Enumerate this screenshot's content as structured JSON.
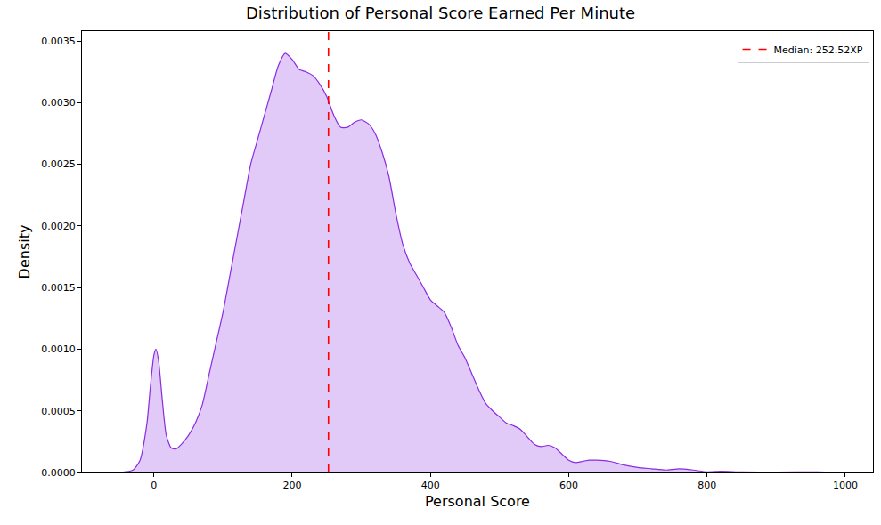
{
  "chart_data": {
    "type": "area",
    "title": "Distribution of Personal Score Earned Per Minute",
    "x_label": "Personal Score",
    "y_label": "Density",
    "color": "#8a2be2",
    "x": [
      -50,
      -30,
      -20,
      -10,
      -5,
      0,
      3,
      7,
      12,
      18,
      25,
      32,
      40,
      50,
      60,
      70,
      80,
      90,
      100,
      110,
      120,
      130,
      140,
      150,
      160,
      170,
      180,
      190,
      200,
      210,
      220,
      230,
      240,
      250,
      260,
      270,
      280,
      290,
      300,
      310,
      320,
      330,
      340,
      350,
      360,
      370,
      380,
      390,
      400,
      410,
      420,
      430,
      440,
      450,
      460,
      470,
      480,
      490,
      500,
      510,
      520,
      530,
      540,
      550,
      560,
      570,
      580,
      590,
      600,
      610,
      620,
      630,
      640,
      660,
      680,
      700,
      720,
      740,
      760,
      780,
      800,
      820,
      850,
      900,
      960,
      990
    ],
    "values": [
      0,
      2e-05,
      0.0001,
      0.0004,
      0.0007,
      0.00095,
      0.001,
      0.0009,
      0.0006,
      0.0003,
      0.0002,
      0.00019,
      0.00023,
      0.0003,
      0.0004,
      0.00055,
      0.0008,
      0.00105,
      0.0013,
      0.0016,
      0.0019,
      0.0022,
      0.0025,
      0.0027,
      0.0029,
      0.0031,
      0.0033,
      0.0034,
      0.00335,
      0.00327,
      0.00325,
      0.00322,
      0.00315,
      0.00305,
      0.0029,
      0.0028,
      0.0028,
      0.00284,
      0.00286,
      0.00283,
      0.00275,
      0.0026,
      0.0024,
      0.0021,
      0.00185,
      0.0017,
      0.0016,
      0.0015,
      0.0014,
      0.00135,
      0.0013,
      0.00118,
      0.00103,
      0.00093,
      0.0008,
      0.00067,
      0.00056,
      0.0005,
      0.00045,
      0.0004,
      0.00038,
      0.00035,
      0.00029,
      0.00023,
      0.00021,
      0.00022,
      0.0002,
      0.00015,
      0.0001,
      8e-05,
      9e-05,
      0.0001,
      0.0001,
      9e-05,
      6e-05,
      4e-05,
      3e-05,
      2e-05,
      3e-05,
      2e-05,
      5e-06,
      1e-05,
      4e-06,
      3e-06,
      5e-06,
      0
    ],
    "vlines": [
      {
        "x": 252.52,
        "name": "Median: 252.52XP",
        "color": "#ff0000",
        "line_style": "dashed"
      }
    ],
    "xlim": [
      -104,
      1040
    ],
    "xticks": [
      0,
      200,
      400,
      600,
      800,
      1000
    ],
    "ylim": [
      0,
      0.00358
    ],
    "yticks": [
      {
        "value": 0,
        "label": "0.0000"
      },
      {
        "value": 0.0005,
        "label": "0.0005"
      },
      {
        "value": 0.001,
        "label": "0.0010"
      },
      {
        "value": 0.0015,
        "label": "0.0015"
      },
      {
        "value": 0.002,
        "label": "0.0020"
      },
      {
        "value": 0.0025,
        "label": "0.0025"
      },
      {
        "value": 0.003,
        "label": "0.0030"
      },
      {
        "value": 0.0035,
        "label": "0.0035"
      }
    ],
    "grid": false,
    "legend": "upper right"
  }
}
